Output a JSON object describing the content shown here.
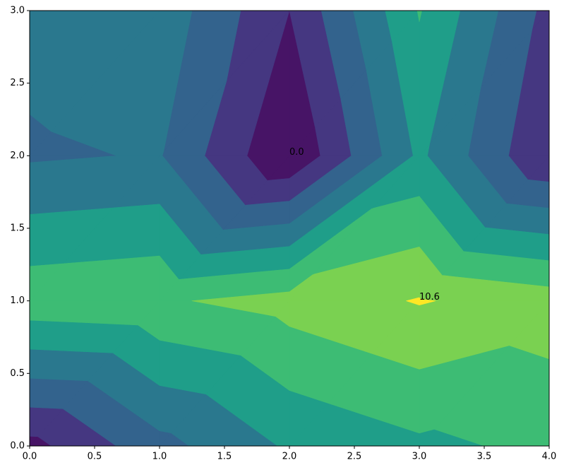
{
  "chart_data": {
    "type": "contourf",
    "x": [
      0,
      1,
      2,
      3,
      4
    ],
    "y": [
      0,
      1,
      2,
      3
    ],
    "z": [
      [
        1.0,
        4.0,
        6.2,
        7.2,
        7.8
      ],
      [
        8.5,
        8.8,
        9.6,
        10.6,
        9.8
      ],
      [
        4.3,
        4.6,
        0.0,
        6.3,
        1.5
      ],
      [
        5.0,
        5.5,
        1.5,
        7.6,
        2.5
      ]
    ],
    "levels": [
      0,
      1.5,
      3,
      4.5,
      6,
      7.5,
      9,
      10.5,
      12
    ],
    "colors": [
      "#471466",
      "#453781",
      "#33638d",
      "#2a788e",
      "#1f9e89",
      "#3dbc74",
      "#7ad151",
      "#fde725"
    ],
    "annotations": [
      {
        "text": "0.0",
        "x": 2,
        "y": 2
      },
      {
        "text": "10.6",
        "x": 3,
        "y": 1
      }
    ],
    "xlim": [
      0,
      4
    ],
    "ylim": [
      0,
      3
    ],
    "xticks": [
      {
        "value": 0,
        "label": "0.0"
      },
      {
        "value": 0.5,
        "label": "0.5"
      },
      {
        "value": 1,
        "label": "1.0"
      },
      {
        "value": 1.5,
        "label": "1.5"
      },
      {
        "value": 2,
        "label": "2.0"
      },
      {
        "value": 2.5,
        "label": "2.5"
      },
      {
        "value": 3,
        "label": "3.0"
      },
      {
        "value": 3.5,
        "label": "3.5"
      },
      {
        "value": 4,
        "label": "4.0"
      }
    ],
    "yticks": [
      {
        "value": 0,
        "label": "0.0"
      },
      {
        "value": 0.5,
        "label": "0.5"
      },
      {
        "value": 1,
        "label": "1.0"
      },
      {
        "value": 1.5,
        "label": "1.5"
      },
      {
        "value": 2,
        "label": "2.0"
      },
      {
        "value": 2.5,
        "label": "2.5"
      },
      {
        "value": 3,
        "label": "3.0"
      }
    ]
  }
}
